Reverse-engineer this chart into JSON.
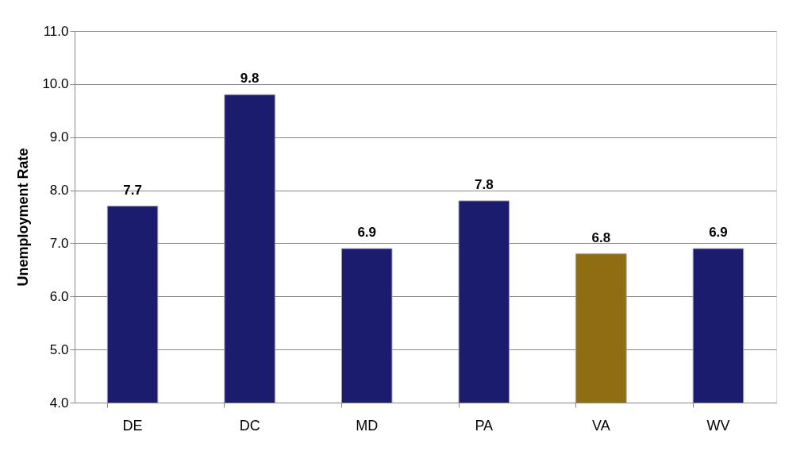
{
  "chart_data": {
    "type": "bar",
    "ylabel": "Unemployment Rate",
    "categories": [
      "DE",
      "DC",
      "MD",
      "PA",
      "VA",
      "WV"
    ],
    "values": [
      7.7,
      9.8,
      6.9,
      7.8,
      6.8,
      6.9
    ],
    "colors": [
      "#1c1c6e",
      "#1c1c6e",
      "#1c1c6e",
      "#1c1c6e",
      "#8f6d12",
      "#1c1c6e"
    ],
    "ylim": [
      4,
      11
    ],
    "yticks": [
      {
        "value": 4,
        "label": "4.0"
      },
      {
        "value": 5,
        "label": "5.0"
      },
      {
        "value": 6,
        "label": "6.0"
      },
      {
        "value": 7,
        "label": "7.0"
      },
      {
        "value": 8,
        "label": "8.0"
      },
      {
        "value": 9,
        "label": "9.0"
      },
      {
        "value": 10,
        "label": "10.0"
      },
      {
        "value": 11,
        "label": "11.0"
      }
    ],
    "grid": "y",
    "data_labels": true
  }
}
